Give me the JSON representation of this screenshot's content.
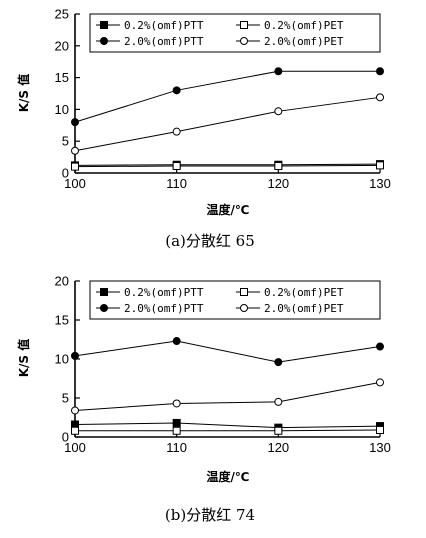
{
  "chart_data": [
    {
      "type": "line",
      "title": "",
      "caption": "(a)分散红 65",
      "xlabel": "温度/℃",
      "ylabel": "K/S 值",
      "x": [
        100,
        110,
        120,
        130
      ],
      "xticks": [
        100,
        110,
        120,
        130
      ],
      "yticks": [
        0,
        5,
        10,
        15,
        20,
        25
      ],
      "xlim": [
        100,
        130
      ],
      "ylim": [
        0,
        25
      ],
      "grid": false,
      "legend_position": "top",
      "series": [
        {
          "name": "0.2%(omf)PTT",
          "marker": "filled-square",
          "values": [
            1.2,
            1.3,
            1.3,
            1.4
          ]
        },
        {
          "name": "0.2%(omf)PET",
          "marker": "open-square",
          "values": [
            1.0,
            1.1,
            1.1,
            1.2
          ]
        },
        {
          "name": "2.0%(omf)PTT",
          "marker": "filled-circle",
          "values": [
            8.0,
            13.0,
            16.0,
            16.0
          ]
        },
        {
          "name": "2.0%(omf)PET",
          "marker": "open-circle",
          "values": [
            3.5,
            6.5,
            9.7,
            11.9
          ]
        }
      ]
    },
    {
      "type": "line",
      "title": "",
      "caption": "(b)分散红 74",
      "xlabel": "温度/℃",
      "ylabel": "K/S 值",
      "x": [
        100,
        110,
        120,
        130
      ],
      "xticks": [
        100,
        110,
        120,
        130
      ],
      "yticks": [
        0,
        5,
        10,
        15,
        20
      ],
      "xlim": [
        100,
        130
      ],
      "ylim": [
        0,
        20
      ],
      "grid": false,
      "legend_position": "top",
      "series": [
        {
          "name": "0.2%(omf)PTT",
          "marker": "filled-square",
          "values": [
            1.6,
            1.8,
            1.2,
            1.4
          ]
        },
        {
          "name": "0.2%(omf)PET",
          "marker": "open-square",
          "values": [
            0.8,
            0.8,
            0.8,
            0.9
          ]
        },
        {
          "name": "2.0%(omf)PTT",
          "marker": "filled-circle",
          "values": [
            10.4,
            12.3,
            9.6,
            11.6
          ]
        },
        {
          "name": "2.0%(omf)PET",
          "marker": "open-circle",
          "values": [
            3.4,
            4.3,
            4.5,
            7.0
          ]
        }
      ]
    }
  ]
}
